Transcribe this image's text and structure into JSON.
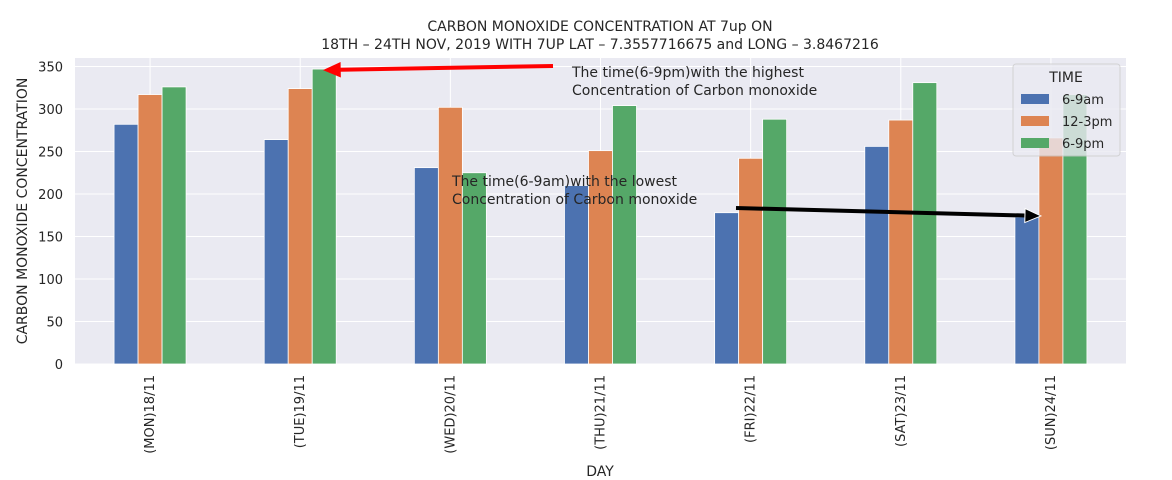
{
  "chart_data": {
    "type": "bar",
    "title": [
      "CARBON MONOXIDE CONCENTRATION AT 7up ON",
      "18TH – 24TH NOV, 2019 WITH 7UP LAT – 7.3557716675 and LONG – 3.8467216"
    ],
    "xlabel": "DAY",
    "ylabel": "CARBON MONOXIDE CONCENTRATION",
    "ylim": [
      0,
      360
    ],
    "yticks": [
      0,
      50,
      100,
      150,
      200,
      250,
      300,
      350
    ],
    "categories": [
      "(MON)18/11",
      "(TUE)19/11",
      "(WED)20/11",
      "(THU)21/11",
      "(FRI)22/11",
      "(SAT)23/11",
      "(SUN)24/11"
    ],
    "series": [
      {
        "name": "6-9am",
        "color": "#4c72b0",
        "values": [
          282,
          264,
          231,
          210,
          178,
          256,
          173
        ]
      },
      {
        "name": "12-3pm",
        "color": "#dd8452",
        "values": [
          317,
          324,
          302,
          251,
          242,
          287,
          266
        ]
      },
      {
        "name": "6-9pm",
        "color": "#55a868",
        "values": [
          326,
          347,
          225,
          304,
          288,
          331,
          317
        ]
      }
    ],
    "legend": {
      "title": "TIME",
      "position": "top-right"
    },
    "grid": true,
    "background": "#eaeaf2",
    "annotations": [
      {
        "lines": [
          "The time(6-9pm)with the highest",
          " Concentration of Carbon monoxide"
        ],
        "arrow_color": "#ff0000",
        "target": {
          "category": "(TUE)19/11",
          "series": "6-9pm"
        }
      },
      {
        "lines": [
          "The time(6-9am)with the lowest",
          " Concentration of Carbon monoxide"
        ],
        "arrow_color": "#000000",
        "target": {
          "category": "(SUN)24/11",
          "series": "6-9am"
        }
      }
    ]
  }
}
